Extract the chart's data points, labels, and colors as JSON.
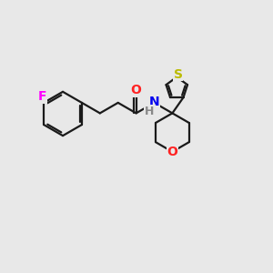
{
  "background_color": "#e8e8e8",
  "bond_color": "#1a1a1a",
  "bond_width": 1.6,
  "atom_colors": {
    "F": "#ff00ff",
    "O": "#ff2222",
    "N": "#0000ee",
    "S": "#bbbb00",
    "H": "#888888",
    "C": "#1a1a1a"
  },
  "font_size": 10,
  "fig_size": [
    3.0,
    3.0
  ],
  "dpi": 100,
  "xlim": [
    0,
    10
  ],
  "ylim": [
    0,
    10
  ]
}
